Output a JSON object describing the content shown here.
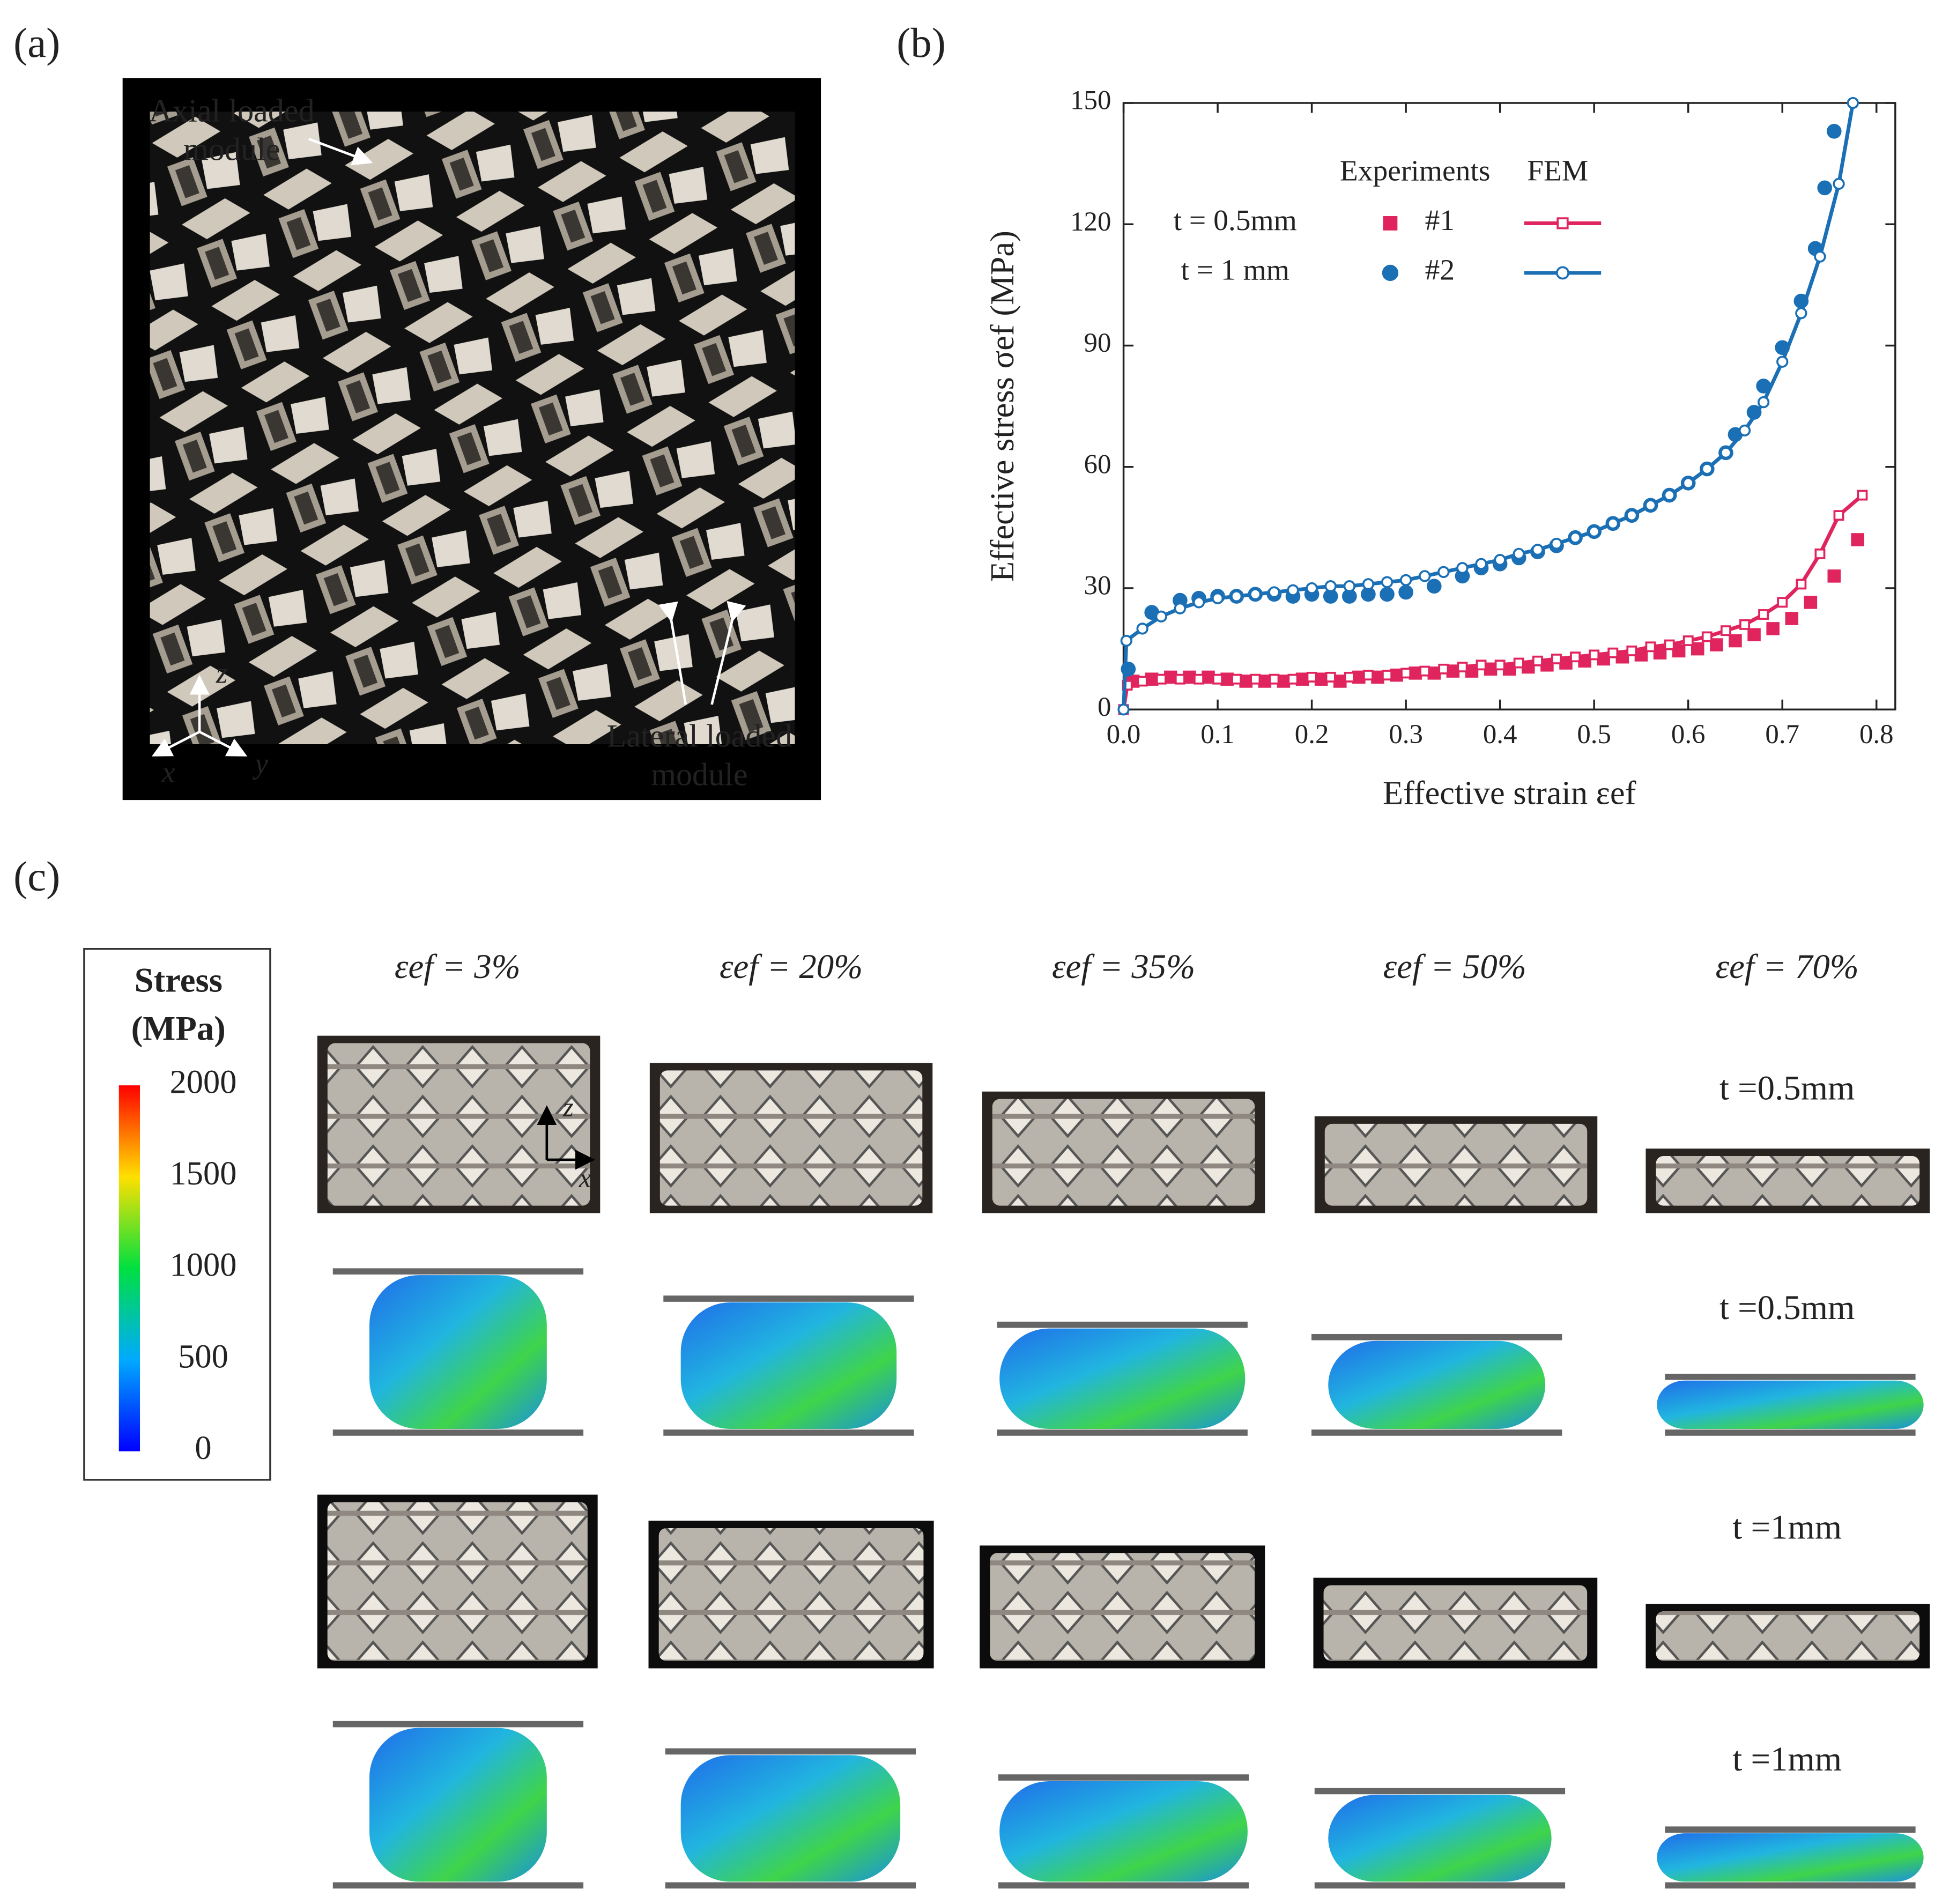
{
  "panel_labels": [
    "(a)",
    "(b)",
    "(c)"
  ],
  "panel_a": {
    "annotations": [
      {
        "lines": [
          "Axial loaded",
          "module"
        ]
      },
      {
        "lines": [
          "Lateral loaded",
          "module"
        ]
      }
    ],
    "axes": [
      "z",
      "y",
      "x"
    ]
  },
  "chart_data": {
    "type": "line",
    "x_label": "Effective strain εef",
    "y_label": "Effective stress σef (MPa)",
    "xlim": [
      0,
      0.82
    ],
    "ylim": [
      0,
      150
    ],
    "xticks": [
      {
        "value": 0,
        "label": "0.0"
      },
      0.1,
      0.2,
      0.3,
      0.4,
      0.5,
      0.6,
      0.7,
      0.8
    ],
    "yticks": [
      0,
      30,
      60,
      90,
      120,
      150
    ],
    "legend": {
      "titles": [
        "Experiments",
        "FEM"
      ],
      "rows": [
        "t = 0.5mm",
        "t = 1 mm"
      ]
    },
    "series": [
      {
        "name": "#1",
        "color": "#e0245e",
        "marker": "square",
        "filled": true,
        "line": false,
        "x": [
          0.01,
          0.03,
          0.05,
          0.07,
          0.09,
          0.11,
          0.13,
          0.15,
          0.17,
          0.19,
          0.21,
          0.23,
          0.25,
          0.27,
          0.29,
          0.31,
          0.33,
          0.35,
          0.37,
          0.39,
          0.41,
          0.43,
          0.45,
          0.47,
          0.49,
          0.51,
          0.53,
          0.55,
          0.57,
          0.59,
          0.61,
          0.63,
          0.65,
          0.67,
          0.69,
          0.71,
          0.73,
          0.755,
          0.78
        ],
        "values": [
          7,
          7.5,
          8,
          8,
          8,
          7.5,
          7,
          7,
          7,
          7.5,
          7.5,
          7,
          8,
          8,
          8.5,
          9,
          9,
          9.5,
          9.5,
          10,
          10,
          10.5,
          11,
          11.5,
          12,
          12.5,
          13,
          13.5,
          14,
          14.5,
          15,
          16,
          17,
          18.5,
          20,
          22.5,
          26.5,
          33,
          42
        ]
      },
      {
        "name": "#2",
        "color": "#1a6fb5",
        "marker": "circle",
        "filled": true,
        "line": false,
        "x": [
          0.005,
          0.03,
          0.06,
          0.08,
          0.1,
          0.12,
          0.14,
          0.16,
          0.18,
          0.2,
          0.22,
          0.24,
          0.26,
          0.28,
          0.3,
          0.33,
          0.36,
          0.38,
          0.4,
          0.42,
          0.44,
          0.46,
          0.48,
          0.5,
          0.52,
          0.54,
          0.56,
          0.58,
          0.6,
          0.62,
          0.64,
          0.65,
          0.67,
          0.68,
          0.7,
          0.72,
          0.735,
          0.745,
          0.755
        ],
        "values": [
          10,
          24,
          27,
          27.5,
          28,
          28,
          28.5,
          28.5,
          28,
          28.5,
          28,
          28,
          28.5,
          28.5,
          29,
          30.5,
          33,
          35,
          36,
          37.5,
          39,
          40.5,
          42.5,
          44,
          46,
          48,
          50.5,
          53,
          56,
          59.5,
          63.5,
          68,
          73.5,
          80,
          89.5,
          101,
          114,
          129,
          143
        ]
      },
      {
        "color": "#e0245e",
        "marker": "square",
        "filled": false,
        "line": true,
        "x": [
          0,
          0.004,
          0.02,
          0.04,
          0.06,
          0.08,
          0.1,
          0.12,
          0.14,
          0.16,
          0.18,
          0.2,
          0.22,
          0.24,
          0.26,
          0.28,
          0.3,
          0.32,
          0.34,
          0.36,
          0.38,
          0.4,
          0.42,
          0.44,
          0.46,
          0.48,
          0.5,
          0.52,
          0.54,
          0.56,
          0.58,
          0.6,
          0.62,
          0.64,
          0.66,
          0.68,
          0.7,
          0.72,
          0.74,
          0.76,
          0.785
        ],
        "values": [
          0,
          6,
          7,
          7.5,
          7.5,
          7.5,
          7.5,
          7.5,
          7.5,
          7.5,
          7.5,
          8,
          8,
          8,
          8.5,
          8.5,
          9,
          9.5,
          10,
          10.5,
          11,
          11,
          11.5,
          12,
          12.5,
          13,
          13.5,
          14,
          14.5,
          15.5,
          16,
          17,
          18,
          19.5,
          21,
          23.5,
          26.5,
          31,
          38.5,
          48,
          53
        ]
      },
      {
        "color": "#1a6fb5",
        "marker": "circle",
        "filled": false,
        "line": true,
        "x": [
          0,
          0.003,
          0.02,
          0.04,
          0.06,
          0.08,
          0.1,
          0.12,
          0.14,
          0.16,
          0.18,
          0.2,
          0.22,
          0.24,
          0.26,
          0.28,
          0.3,
          0.32,
          0.34,
          0.36,
          0.38,
          0.4,
          0.42,
          0.44,
          0.46,
          0.48,
          0.5,
          0.52,
          0.54,
          0.56,
          0.58,
          0.6,
          0.62,
          0.64,
          0.66,
          0.68,
          0.7,
          0.72,
          0.74,
          0.76,
          0.775
        ],
        "values": [
          0,
          17,
          20,
          23,
          25,
          26.5,
          27.5,
          28,
          28.5,
          29,
          29.5,
          30,
          30.5,
          30.5,
          31,
          31.5,
          32,
          33,
          34,
          35,
          36,
          37,
          38.5,
          39.5,
          41,
          42.5,
          44,
          46,
          48,
          50.5,
          53,
          56,
          59.5,
          63.5,
          69,
          76,
          86,
          98,
          112,
          130,
          150
        ]
      }
    ]
  },
  "panel_c": {
    "colorbar": {
      "title": [
        "Stress",
        "(MPa)"
      ],
      "lim": [
        0,
        2000
      ],
      "ticks": [
        0,
        500,
        1000,
        1500,
        2000
      ]
    },
    "columns": [
      "εef = 3%",
      "εef = 20%",
      "εef = 35%",
      "εef = 50%",
      "εef = 70%"
    ],
    "row_labels": [
      "t =0.5mm",
      "t =0.5mm",
      "t =1mm",
      "t =1mm"
    ],
    "photo_axes": [
      "z",
      "x"
    ]
  }
}
